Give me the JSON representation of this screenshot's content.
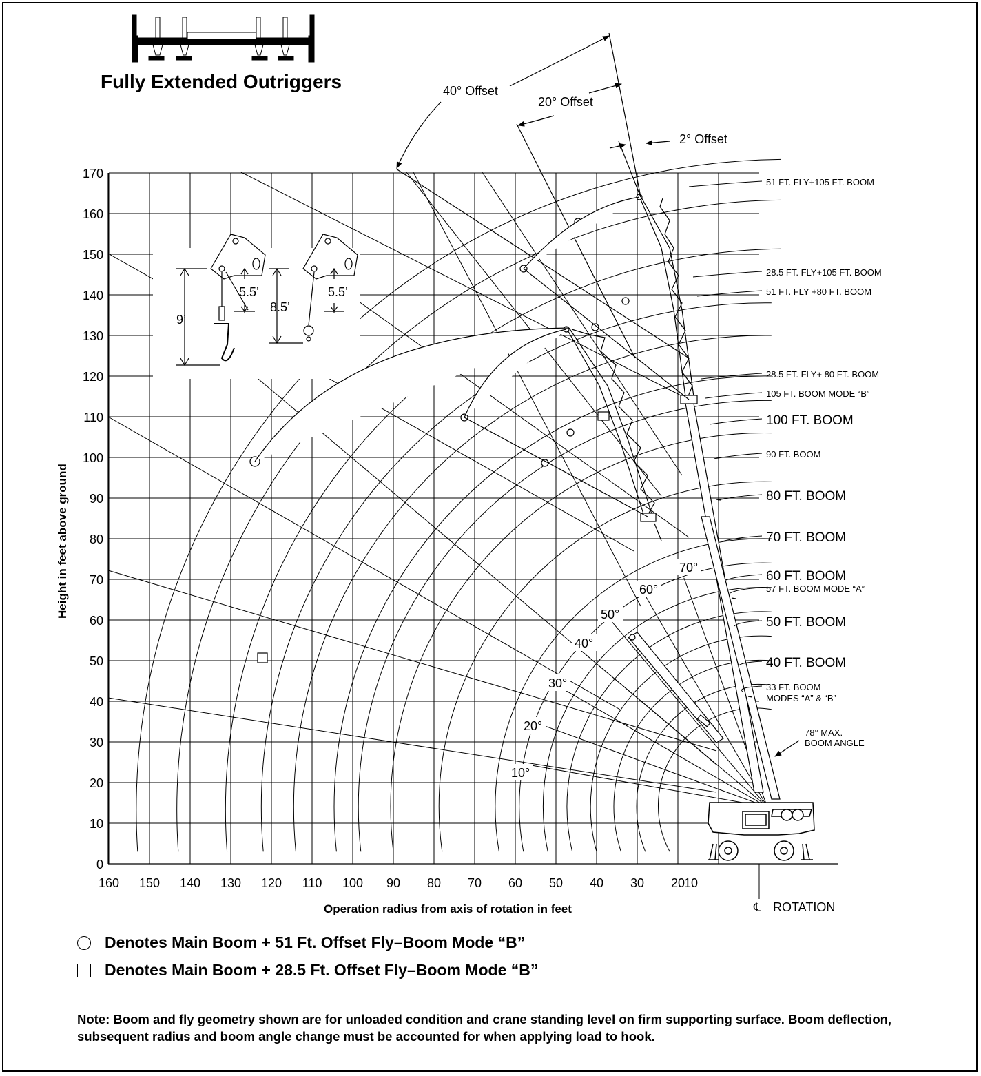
{
  "title": "Fully Extended Outriggers",
  "offsets": [
    {
      "label": "40° Offset"
    },
    {
      "label": "20° Offset"
    },
    {
      "label": "2° Offset"
    }
  ],
  "axes": {
    "y_label": "Height in feet above ground",
    "x_label": "Operation radius from axis of rotation in feet",
    "y_ticks": [
      "170",
      "160",
      "150",
      "140",
      "130",
      "120",
      "110",
      "100",
      "90",
      "80",
      "70",
      "60",
      "50",
      "40",
      "30",
      "20",
      "10",
      "0"
    ],
    "x_ticks": [
      "160",
      "150",
      "140",
      "130",
      "120",
      "110",
      "100",
      "90",
      "80",
      "70",
      "60",
      "50",
      "40",
      "30",
      "20",
      "10"
    ],
    "rotation_symbol": "℄",
    "rotation_label": "ROTATION"
  },
  "boom_labels": [
    {
      "text": "51 FT. FLY+105 FT. BOOM",
      "size": "small"
    },
    {
      "text": "28.5 FT. FLY+105 FT. BOOM",
      "size": "small"
    },
    {
      "text": "51 FT. FLY +80 FT. BOOM",
      "size": "small"
    },
    {
      "text": "28.5 FT. FLY+ 80 FT. BOOM",
      "size": "small"
    },
    {
      "text": "105 FT. BOOM MODE “B”",
      "size": "small"
    },
    {
      "text": "100 FT. BOOM",
      "size": "large"
    },
    {
      "text": "90 FT. BOOM",
      "size": "small"
    },
    {
      "text": "80 FT. BOOM",
      "size": "large"
    },
    {
      "text": "70 FT. BOOM",
      "size": "large"
    },
    {
      "text": "60 FT. BOOM",
      "size": "large"
    },
    {
      "text": "57 FT. BOOM MODE “A”",
      "size": "small"
    },
    {
      "text": "50 FT. BOOM",
      "size": "large"
    },
    {
      "text": "40 FT. BOOM",
      "size": "large"
    },
    {
      "text": "33 FT. BOOM",
      "size": "small"
    },
    {
      "text": "MODES “A” & “B”",
      "size": "small"
    }
  ],
  "max_angle": {
    "line1": "78° MAX.",
    "line2": "BOOM ANGLE"
  },
  "angle_labels": [
    "10°",
    "20°",
    "30°",
    "40°",
    "50°",
    "60°",
    "70°"
  ],
  "hook_dims": {
    "left_total": "9’",
    "left_block": "5.5’",
    "right_total": "8.5’",
    "right_ball": "5.5’"
  },
  "legend": [
    {
      "symbol": "circle",
      "text": "Denotes Main Boom + 51 Ft. Offset Fly–Boom Mode “B”"
    },
    {
      "symbol": "square",
      "text": "Denotes Main Boom + 28.5 Ft. Offset Fly–Boom Mode “B”"
    }
  ],
  "note": "Note:  Boom and fly geometry shown are for unloaded condition and crane standing level on firm supporting surface.  Boom deflection, subsequent radius and boom angle change must be accounted for when applying load to hook."
}
